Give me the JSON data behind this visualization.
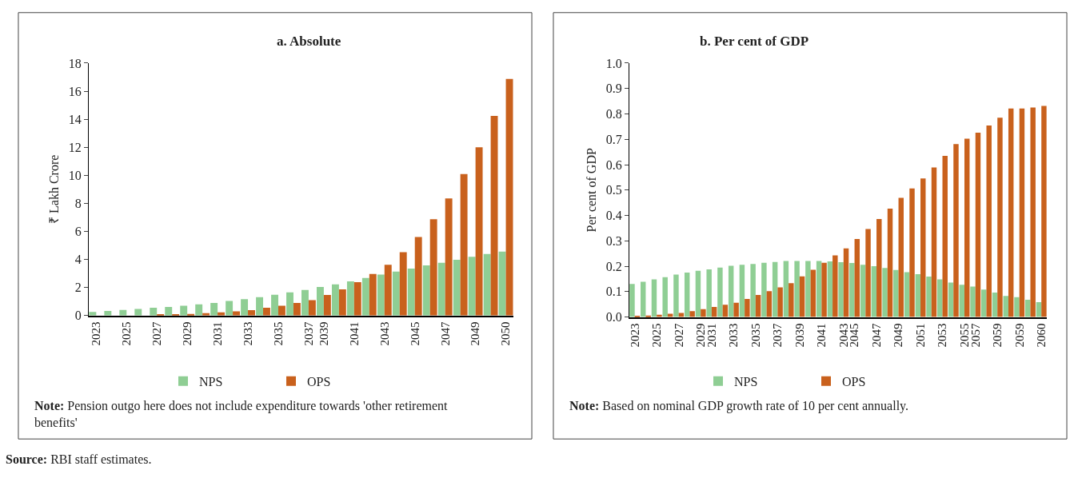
{
  "chart_data": [
    {
      "type": "bar",
      "title": "a. Absolute",
      "ylabel": "₹ Lakh Crore",
      "categories": [
        "2023",
        null,
        "2025",
        null,
        "2027",
        null,
        "2029",
        null,
        "2031",
        null,
        "2033",
        null,
        "2035",
        null,
        "2037",
        "2039",
        null,
        "2041",
        null,
        "2043",
        null,
        "2045",
        null,
        "2047",
        null,
        "2049",
        null,
        "2050"
      ],
      "ylim": [
        0,
        18
      ],
      "yticks": [
        0,
        2,
        4,
        6,
        8,
        10,
        12,
        14,
        16,
        18
      ],
      "legend": "bottom",
      "series": [
        {
          "name": "NPS",
          "color": "#8fce94",
          "values": [
            0.25,
            0.32,
            0.4,
            0.46,
            0.55,
            0.61,
            0.7,
            0.8,
            0.9,
            1.03,
            1.16,
            1.31,
            1.48,
            1.65,
            1.82,
            2.03,
            2.22,
            2.43,
            2.68,
            2.92,
            3.13,
            3.34,
            3.57,
            3.76,
            3.97,
            4.19,
            4.38,
            4.55
          ]
        },
        {
          "name": "OPS",
          "color": "#c9611d",
          "values": [
            null,
            null,
            null,
            null,
            0.05,
            0.08,
            0.11,
            0.16,
            0.22,
            0.3,
            0.38,
            0.55,
            0.7,
            0.89,
            1.1,
            1.46,
            1.86,
            2.37,
            2.96,
            3.62,
            4.52,
            5.6,
            6.87,
            8.35,
            10.08,
            12.0,
            14.23,
            16.87
          ]
        }
      ],
      "annotations": [
        "Note: Pension outgo here does not include expenditure towards 'other retirement benefits'",
        "Source: RBI staff estimates."
      ]
    },
    {
      "type": "bar",
      "title": "b. Per cent of GDP",
      "ylabel": "Per cent of GDP",
      "categories": [
        "2023",
        null,
        "2025",
        null,
        "2027",
        null,
        "2029",
        "2031",
        null,
        "2033",
        null,
        "2035",
        null,
        "2037",
        null,
        "2039",
        null,
        "2041",
        null,
        "2043",
        "2045",
        null,
        "2047",
        null,
        "2049",
        null,
        "2051",
        null,
        "2053",
        null,
        "2055",
        "2057",
        null,
        "2059",
        null,
        "2059",
        null,
        "2060"
      ],
      "ylim": [
        0,
        1
      ],
      "yticks": [
        {
          "value": 0,
          "label": "0.0"
        },
        {
          "value": 0.1,
          "label": "0.1"
        },
        {
          "value": 0.2,
          "label": "0.2"
        },
        {
          "value": 0.3,
          "label": "0.3"
        },
        {
          "value": 0.4,
          "label": "0.4"
        },
        {
          "value": 0.5,
          "label": "0.5"
        },
        {
          "value": 0.6,
          "label": "0.6"
        },
        {
          "value": 0.7,
          "label": "0.7"
        },
        {
          "value": 0.8,
          "label": "0.8"
        },
        {
          "value": 0.9,
          "label": "0.9"
        },
        {
          "value": 1,
          "label": "1.0"
        }
      ],
      "legend": "bottom",
      "series": [
        {
          "name": "NPS",
          "color": "#8fce94",
          "values": [
            0.13,
            0.139,
            0.148,
            0.157,
            0.167,
            0.175,
            0.182,
            0.188,
            0.195,
            0.202,
            0.206,
            0.209,
            0.214,
            0.217,
            0.221,
            0.221,
            0.221,
            0.221,
            0.219,
            0.216,
            0.213,
            0.206,
            0.2,
            0.193,
            0.185,
            0.177,
            0.169,
            0.159,
            0.148,
            0.136,
            0.127,
            0.12,
            0.108,
            0.096,
            0.083,
            0.078,
            0.068,
            0.059
          ]
        },
        {
          "name": "OPS",
          "color": "#c9611d",
          "values": [
            0.003,
            0.006,
            0.009,
            0.013,
            0.016,
            0.023,
            0.031,
            0.04,
            0.048,
            0.056,
            0.071,
            0.087,
            0.102,
            0.117,
            0.133,
            0.16,
            0.186,
            0.214,
            0.243,
            0.27,
            0.307,
            0.347,
            0.386,
            0.427,
            0.469,
            0.506,
            0.546,
            0.589,
            0.635,
            0.681,
            0.702,
            0.726,
            0.754,
            0.785,
            0.821,
            0.821,
            0.825,
            0.831
          ]
        }
      ],
      "annotations": [
        "Note: Based on nominal GDP growth rate of 10 per cent annually."
      ]
    }
  ]
}
